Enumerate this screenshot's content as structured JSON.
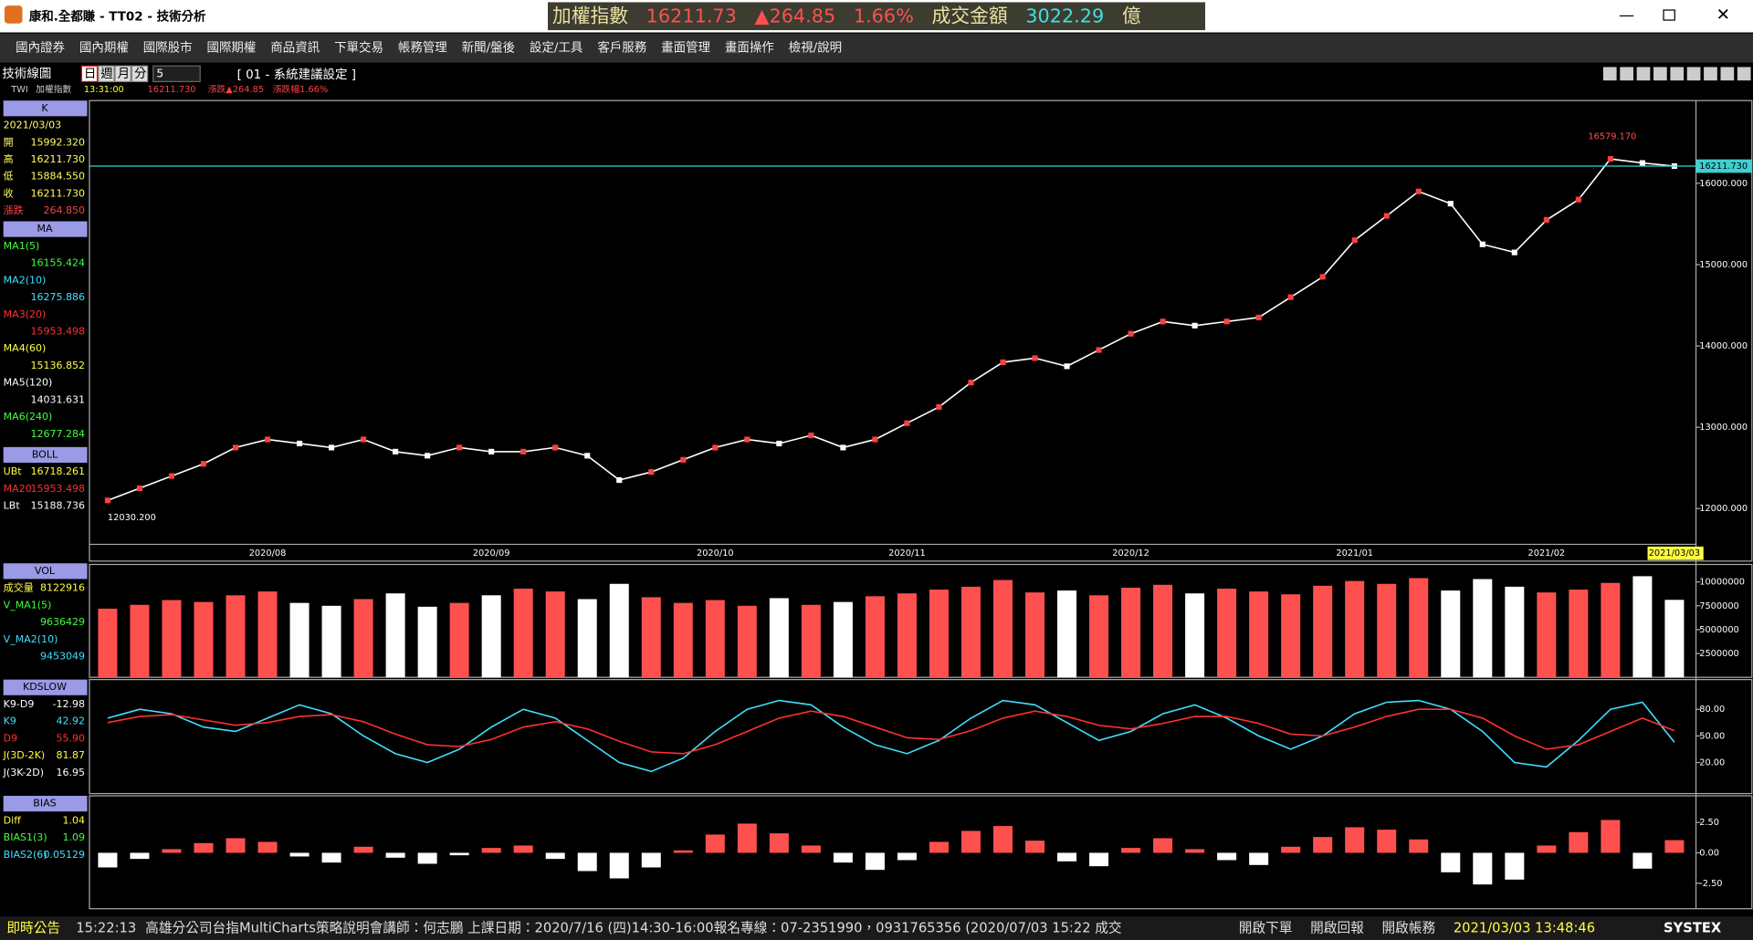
{
  "window": {
    "title": "康和.全都賺 - TT02 - 技術分析",
    "ticker": [
      {
        "text": "加權指數",
        "color": "#e8e0a0"
      },
      {
        "text": "16211.73",
        "color": "#ff5050"
      },
      {
        "text": "▲264.85",
        "color": "#ff5050"
      },
      {
        "text": "1.66%",
        "color": "#ff5050"
      },
      {
        "text": "成交金額",
        "color": "#e8e0a0"
      },
      {
        "text": "3022.29",
        "color": "#40e0e0"
      },
      {
        "text": "億",
        "color": "#e8e0a0"
      }
    ]
  },
  "menu": [
    "國內證券",
    "國內期權",
    "國際股市",
    "國際期權",
    "商品資訊",
    "下單交易",
    "帳務管理",
    "新聞/盤後",
    "設定/工具",
    "客戶服務",
    "畫面管理",
    "畫面操作",
    "檢視/說明"
  ],
  "toolbar": {
    "label": "技術線圖",
    "periods": [
      "日",
      "週",
      "月",
      "分"
    ],
    "period_value": "5",
    "setting": "[ 01 - 系統建議設定 ]",
    "symbol": "TWI",
    "name": "加權指數",
    "time": "13:31:00",
    "price": "16211.730",
    "change": "漲跌▲264.85",
    "pct": "漲跌幅1.66%"
  },
  "left_panel": [
    {
      "header": "K",
      "top": 97,
      "rows": [
        {
          "label": "2021/03/03",
          "color": "#ffff60"
        },
        {
          "label": "開",
          "value": "15992.320",
          "color": "#ffff60"
        },
        {
          "label": "高",
          "value": "16211.730",
          "color": "#ffff60"
        },
        {
          "label": "低",
          "value": "15884.550",
          "color": "#ffff60"
        },
        {
          "label": "收",
          "value": "16211.730",
          "color": "#ffff60"
        },
        {
          "label": "漲跌",
          "value": "264.850",
          "color": "#ff4040"
        }
      ]
    },
    {
      "header": "MA",
      "top": 205,
      "rows": [
        {
          "label": "MA1(5)",
          "color": "#40ff40"
        },
        {
          "value": "16155.424",
          "color": "#40ff40"
        },
        {
          "label": "MA2(10)",
          "color": "#40e0ff"
        },
        {
          "value": "16275.886",
          "color": "#40e0ff"
        },
        {
          "label": "MA3(20)",
          "color": "#ff3030"
        },
        {
          "value": "15953.498",
          "color": "#ff3030"
        },
        {
          "label": "MA4(60)",
          "color": "#ffff40"
        },
        {
          "value": "15136.852",
          "color": "#ffff40"
        },
        {
          "label": "MA5(120)",
          "color": "#ffffff"
        },
        {
          "value": "14031.631",
          "color": "#ffffff"
        },
        {
          "label": "MA6(240)",
          "color": "#40ff40"
        },
        {
          "value": "12677.284",
          "color": "#40ff40"
        }
      ]
    },
    {
      "header": "BOLL",
      "top": 407,
      "rows": [
        {
          "label": "UBt",
          "value": "16718.261",
          "color": "#ffff40"
        },
        {
          "label": "MA20",
          "value": "15953.498",
          "color": "#ff3030"
        },
        {
          "label": "LBt",
          "value": "15188.736",
          "color": "#ffffff"
        }
      ]
    },
    {
      "header": "VOL",
      "top": 511,
      "rows": [
        {
          "label": "成交量",
          "value": "8122916",
          "color": "#ffff40"
        },
        {
          "label": "V_MA1(5)",
          "color": "#40ff40"
        },
        {
          "value": "9636429",
          "color": "#40ff40"
        },
        {
          "label": "V_MA2(10)",
          "color": "#40e0ff"
        },
        {
          "value": "9453049",
          "color": "#40e0ff"
        }
      ]
    },
    {
      "header": "KDSLOW",
      "top": 615,
      "rows": [
        {
          "label": "K9-D9",
          "value": "-12.98",
          "color": "#ffffff"
        },
        {
          "label": "K9",
          "value": "42.92",
          "color": "#40e0ff"
        },
        {
          "label": "D9",
          "value": "55.90",
          "color": "#ff3030"
        },
        {
          "label": "J(3D-2K)",
          "value": "81.87",
          "color": "#ffff40"
        },
        {
          "label": "J(3K-2D)",
          "value": "16.95",
          "color": "#ffffff"
        }
      ]
    },
    {
      "header": "BIAS",
      "top": 719,
      "rows": [
        {
          "label": "Diff",
          "value": "1.04",
          "color": "#ffff40"
        },
        {
          "label": "BIAS1(3)",
          "value": "1.09",
          "color": "#40ff40"
        },
        {
          "label": "BIAS2(6)",
          "value": "0.05129",
          "color": "#40e0ff"
        }
      ]
    }
  ],
  "status": {
    "tag": "即時公告",
    "time": "15:22:13",
    "message": "高雄分公司台指MultiCharts策略說明會講師：何志鵬 上課日期：2020/7/16 (四)14:30-16:00報名專線：07-2351990，0931765356 (2020/07/03 15:22 成交",
    "buttons": [
      "開啟下單",
      "開啟回報",
      "開啟帳務"
    ],
    "clock": "2021/03/03 13:48:46",
    "brand": "SYSTEX"
  },
  "chart_data": [
    {
      "type": "line",
      "color": "#ffffff",
      "categories": [
        null,
        null,
        null,
        null,
        null,
        "2020/08",
        null,
        null,
        null,
        null,
        null,
        null,
        "2020/09",
        null,
        null,
        null,
        null,
        null,
        null,
        "2020/10",
        null,
        null,
        null,
        null,
        null,
        "2020/11",
        null,
        null,
        null,
        null,
        null,
        null,
        "2020/12",
        null,
        null,
        null,
        null,
        null,
        null,
        "2021/01",
        null,
        null,
        null,
        null,
        null,
        "2021/02",
        null,
        null,
        null,
        "2021/03/03"
      ],
      "values": [
        12100,
        12250,
        12400,
        12550,
        12750,
        12850,
        12800,
        12750,
        12850,
        12700,
        12650,
        12750,
        12700,
        12700,
        12750,
        12650,
        12350,
        12450,
        12600,
        12750,
        12850,
        12800,
        12900,
        12750,
        12850,
        13050,
        13250,
        13550,
        13800,
        13850,
        13750,
        13950,
        14150,
        14300,
        14250,
        14300,
        14350,
        14600,
        14850,
        15300,
        15600,
        15900,
        15750,
        15250,
        15150,
        15550,
        15800,
        16300,
        16250,
        16211.73
      ],
      "ylim": [
        11560,
        16990
      ],
      "yticks": [
        {
          "value": 12000,
          "label": "12000.000"
        },
        {
          "value": 13000,
          "label": "13000.000"
        },
        {
          "value": 14000,
          "label": "14000.000"
        },
        {
          "value": 15000,
          "label": "15000.000"
        },
        {
          "value": 16000,
          "label": "16000.000"
        }
      ],
      "high": {
        "value": 16579.17,
        "label": "16579.170"
      },
      "low": {
        "value": 12030.2,
        "label": "12030.200"
      },
      "last": {
        "value": 16211.73,
        "label": "16211.730"
      }
    },
    {
      "type": "bar",
      "up_color": "#ff5050",
      "down_color": "#ffffff",
      "values": [
        7200000,
        7600000,
        8100000,
        7900000,
        8600000,
        9000000,
        7800000,
        7500000,
        8200000,
        8800000,
        7400000,
        7800000,
        8600000,
        9300000,
        9000000,
        8200000,
        9800000,
        8400000,
        7800000,
        8100000,
        7500000,
        8300000,
        7600000,
        7900000,
        8500000,
        8800000,
        9200000,
        9500000,
        10200000,
        8900000,
        9100000,
        8600000,
        9400000,
        9700000,
        8800000,
        9300000,
        9000000,
        8700000,
        9600000,
        10100000,
        9800000,
        10400000,
        9100000,
        10300000,
        9500000,
        8900000,
        9200000,
        9900000,
        10600000,
        8122916
      ],
      "ylim": [
        0,
        11600000
      ],
      "yticks": [
        2500000,
        5000000,
        7500000,
        10000000
      ]
    },
    {
      "type": "line",
      "series": [
        {
          "color": "#40e0ff",
          "values": [
            70,
            80,
            75,
            60,
            55,
            70,
            85,
            75,
            50,
            30,
            20,
            35,
            60,
            80,
            70,
            45,
            20,
            10,
            25,
            55,
            80,
            90,
            85,
            60,
            40,
            30,
            45,
            70,
            90,
            85,
            65,
            45,
            55,
            75,
            85,
            70,
            50,
            35,
            50,
            75,
            88,
            90,
            80,
            55,
            20,
            15,
            45,
            80,
            88,
            42.92
          ]
        },
        {
          "color": "#ff3030",
          "values": [
            65,
            72,
            74,
            68,
            62,
            65,
            72,
            74,
            66,
            52,
            40,
            38,
            46,
            60,
            66,
            58,
            44,
            32,
            30,
            40,
            55,
            70,
            78,
            72,
            60,
            48,
            46,
            56,
            70,
            78,
            72,
            62,
            58,
            64,
            72,
            72,
            64,
            52,
            50,
            60,
            72,
            80,
            80,
            70,
            50,
            35,
            40,
            55,
            70,
            55.9
          ]
        }
      ],
      "ylim": [
        -15,
        111
      ],
      "yticks": [
        {
          "value": 20,
          "label": "20.00"
        },
        {
          "value": 50,
          "label": "50.00"
        },
        {
          "value": 80,
          "label": "80.00"
        }
      ]
    },
    {
      "type": "bar",
      "up_color": "#ff5050",
      "down_color": "#ffffff",
      "values": [
        -1.2,
        -0.5,
        0.3,
        0.8,
        1.2,
        0.9,
        -0.3,
        -0.8,
        0.5,
        -0.4,
        -0.9,
        -0.2,
        0.4,
        0.6,
        -0.5,
        -1.5,
        -2.1,
        -1.2,
        0.2,
        1.5,
        2.4,
        1.6,
        0.6,
        -0.8,
        -1.4,
        -0.6,
        0.9,
        1.8,
        2.2,
        1.0,
        -0.7,
        -1.1,
        0.4,
        1.2,
        0.3,
        -0.6,
        -1.0,
        0.5,
        1.3,
        2.1,
        1.9,
        1.1,
        -1.6,
        -2.6,
        -2.2,
        0.6,
        1.7,
        2.7,
        -1.3,
        1.04
      ],
      "ylim": [
        -4.5,
        4.5
      ],
      "yticks": [
        {
          "value": -2.5,
          "label": "-2.50"
        },
        {
          "value": 0,
          "label": "0.00"
        },
        {
          "value": 2.5,
          "label": "2.50"
        }
      ]
    }
  ]
}
